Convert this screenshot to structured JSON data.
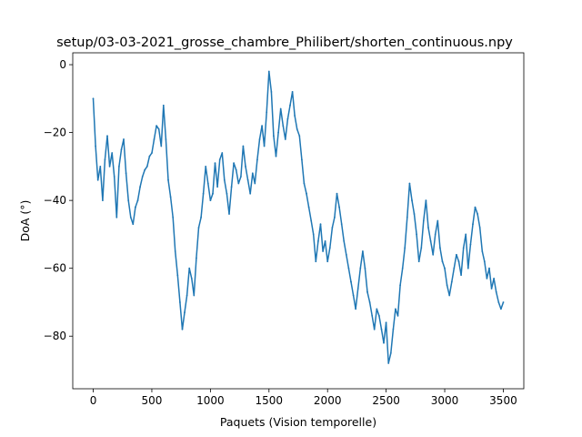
{
  "chart_data": {
    "type": "line",
    "title": "setup/03-03-2021_grosse_chambre_Philibert/shorten_continuous.npy",
    "xlabel": "Paquets (Vision temporelle)",
    "ylabel": "DoA (°)",
    "xlim": [
      -175,
      3675
    ],
    "ylim": [
      -95.5,
      3.5
    ],
    "x_ticks": [
      0,
      500,
      1000,
      1500,
      2000,
      2500,
      3000,
      3500
    ],
    "y_ticks": [
      0,
      -20,
      -40,
      -60,
      -80
    ],
    "grid": false,
    "legend": "none",
    "series": [
      {
        "color": "#1f77b4",
        "points": [
          [
            0,
            -10
          ],
          [
            20,
            -24
          ],
          [
            40,
            -34
          ],
          [
            60,
            -30
          ],
          [
            80,
            -40
          ],
          [
            100,
            -28
          ],
          [
            120,
            -21
          ],
          [
            140,
            -30
          ],
          [
            160,
            -26
          ],
          [
            180,
            -33
          ],
          [
            200,
            -45
          ],
          [
            220,
            -30
          ],
          [
            240,
            -25
          ],
          [
            260,
            -22
          ],
          [
            280,
            -32
          ],
          [
            300,
            -40
          ],
          [
            320,
            -45
          ],
          [
            340,
            -47
          ],
          [
            360,
            -42
          ],
          [
            380,
            -40
          ],
          [
            400,
            -36
          ],
          [
            420,
            -33
          ],
          [
            440,
            -31
          ],
          [
            460,
            -30
          ],
          [
            480,
            -27
          ],
          [
            500,
            -26
          ],
          [
            520,
            -22
          ],
          [
            540,
            -18
          ],
          [
            560,
            -19
          ],
          [
            580,
            -24
          ],
          [
            600,
            -12
          ],
          [
            620,
            -22
          ],
          [
            640,
            -34
          ],
          [
            660,
            -39
          ],
          [
            680,
            -45
          ],
          [
            700,
            -55
          ],
          [
            720,
            -62
          ],
          [
            740,
            -70
          ],
          [
            760,
            -78
          ],
          [
            780,
            -73
          ],
          [
            800,
            -68
          ],
          [
            820,
            -60
          ],
          [
            840,
            -63
          ],
          [
            860,
            -68
          ],
          [
            880,
            -57
          ],
          [
            900,
            -48
          ],
          [
            920,
            -45
          ],
          [
            940,
            -38
          ],
          [
            960,
            -30
          ],
          [
            980,
            -35
          ],
          [
            1000,
            -40
          ],
          [
            1020,
            -38
          ],
          [
            1040,
            -29
          ],
          [
            1060,
            -36
          ],
          [
            1080,
            -28
          ],
          [
            1100,
            -26
          ],
          [
            1120,
            -34
          ],
          [
            1140,
            -38
          ],
          [
            1160,
            -44
          ],
          [
            1180,
            -36
          ],
          [
            1200,
            -29
          ],
          [
            1220,
            -31
          ],
          [
            1240,
            -35
          ],
          [
            1260,
            -33
          ],
          [
            1280,
            -24
          ],
          [
            1300,
            -30
          ],
          [
            1320,
            -34
          ],
          [
            1340,
            -38
          ],
          [
            1360,
            -32
          ],
          [
            1380,
            -35
          ],
          [
            1400,
            -28
          ],
          [
            1420,
            -22
          ],
          [
            1440,
            -18
          ],
          [
            1460,
            -24
          ],
          [
            1480,
            -14
          ],
          [
            1500,
            -2
          ],
          [
            1520,
            -8
          ],
          [
            1540,
            -21
          ],
          [
            1560,
            -27
          ],
          [
            1580,
            -20
          ],
          [
            1600,
            -13
          ],
          [
            1620,
            -18
          ],
          [
            1640,
            -22
          ],
          [
            1660,
            -16
          ],
          [
            1680,
            -12
          ],
          [
            1700,
            -8
          ],
          [
            1720,
            -15
          ],
          [
            1740,
            -19
          ],
          [
            1760,
            -21
          ],
          [
            1780,
            -28
          ],
          [
            1800,
            -35
          ],
          [
            1820,
            -38
          ],
          [
            1840,
            -42
          ],
          [
            1860,
            -46
          ],
          [
            1880,
            -50
          ],
          [
            1900,
            -58
          ],
          [
            1920,
            -52
          ],
          [
            1940,
            -47
          ],
          [
            1960,
            -55
          ],
          [
            1980,
            -52
          ],
          [
            2000,
            -58
          ],
          [
            2020,
            -54
          ],
          [
            2040,
            -48
          ],
          [
            2060,
            -45
          ],
          [
            2080,
            -38
          ],
          [
            2100,
            -42
          ],
          [
            2120,
            -47
          ],
          [
            2140,
            -52
          ],
          [
            2160,
            -56
          ],
          [
            2180,
            -60
          ],
          [
            2200,
            -64
          ],
          [
            2220,
            -68
          ],
          [
            2240,
            -72
          ],
          [
            2260,
            -66
          ],
          [
            2280,
            -60
          ],
          [
            2300,
            -55
          ],
          [
            2320,
            -60
          ],
          [
            2340,
            -67
          ],
          [
            2360,
            -70
          ],
          [
            2380,
            -74
          ],
          [
            2400,
            -78
          ],
          [
            2420,
            -72
          ],
          [
            2440,
            -74
          ],
          [
            2460,
            -78
          ],
          [
            2480,
            -82
          ],
          [
            2500,
            -76
          ],
          [
            2520,
            -88
          ],
          [
            2540,
            -85
          ],
          [
            2560,
            -78
          ],
          [
            2580,
            -72
          ],
          [
            2600,
            -74
          ],
          [
            2620,
            -65
          ],
          [
            2640,
            -60
          ],
          [
            2660,
            -54
          ],
          [
            2680,
            -45
          ],
          [
            2700,
            -35
          ],
          [
            2720,
            -40
          ],
          [
            2740,
            -44
          ],
          [
            2760,
            -50
          ],
          [
            2780,
            -58
          ],
          [
            2800,
            -54
          ],
          [
            2820,
            -46
          ],
          [
            2840,
            -40
          ],
          [
            2860,
            -48
          ],
          [
            2880,
            -52
          ],
          [
            2900,
            -56
          ],
          [
            2920,
            -50
          ],
          [
            2940,
            -46
          ],
          [
            2960,
            -54
          ],
          [
            2980,
            -58
          ],
          [
            3000,
            -60
          ],
          [
            3020,
            -65
          ],
          [
            3040,
            -68
          ],
          [
            3060,
            -64
          ],
          [
            3080,
            -60
          ],
          [
            3100,
            -56
          ],
          [
            3120,
            -58
          ],
          [
            3140,
            -62
          ],
          [
            3160,
            -54
          ],
          [
            3180,
            -50
          ],
          [
            3200,
            -60
          ],
          [
            3220,
            -53
          ],
          [
            3240,
            -47
          ],
          [
            3260,
            -42
          ],
          [
            3280,
            -44
          ],
          [
            3300,
            -48
          ],
          [
            3320,
            -55
          ],
          [
            3340,
            -58
          ],
          [
            3360,
            -63
          ],
          [
            3380,
            -60
          ],
          [
            3400,
            -66
          ],
          [
            3420,
            -63
          ],
          [
            3440,
            -67
          ],
          [
            3460,
            -70
          ],
          [
            3480,
            -72
          ],
          [
            3500,
            -70
          ]
        ]
      }
    ]
  }
}
